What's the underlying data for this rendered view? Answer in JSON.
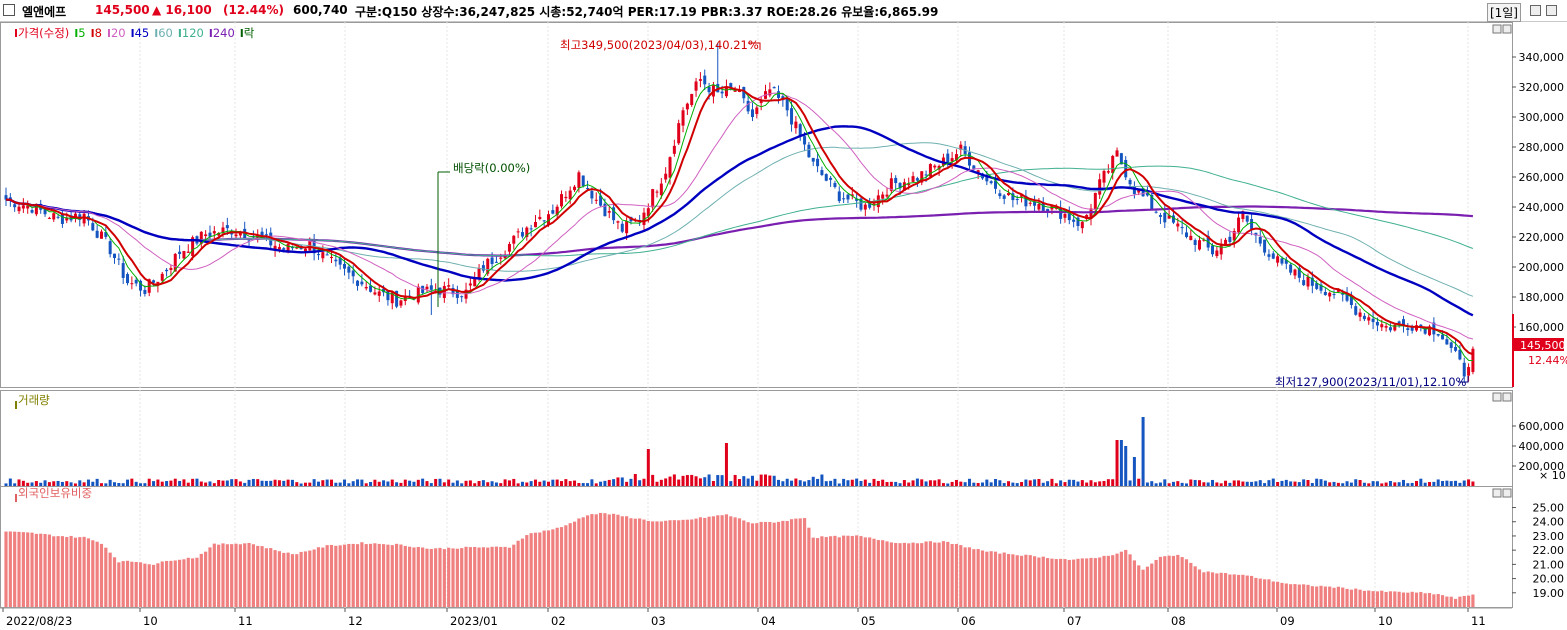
{
  "header": {
    "name": "엘앤에프",
    "price": "145,500",
    "change": "▲ 16,100",
    "change_pct": "(12.44%)",
    "volume": "600,740",
    "info": "구분:Q150 상장수:36,247,825 시총:52,740억 PER:17.19 PBR:3.37 ROE:28.26 유보율:6,865.99",
    "period": "[1일]"
  },
  "price_legend": [
    {
      "label": "가격(수정)",
      "color": "#e0001b"
    },
    {
      "label": "5",
      "color": "#00b000"
    },
    {
      "label": "8",
      "color": "#d00000"
    },
    {
      "label": "20",
      "color": "#d060c0"
    },
    {
      "label": "45",
      "color": "#0000c0"
    },
    {
      "label": "60",
      "color": "#6fb0b0"
    },
    {
      "label": "120",
      "color": "#40b090"
    },
    {
      "label": "240",
      "color": "#7a1fb0"
    },
    {
      "label": "락",
      "color": "#006000"
    }
  ],
  "volume_legend": "거래량",
  "foreign_legend": "외국인보유비중",
  "annotations": {
    "high": "최고349,500(2023/04/03),140.21%",
    "low": "최저127,900(2023/11/01),12.10%",
    "dividend": "배당락(0.00%)"
  },
  "last_price_tag": {
    "price": "145,500",
    "pct": "12.44%"
  },
  "volume_unit": "× 10",
  "colors": {
    "up": "#e0001b",
    "down": "#1555c0",
    "foreign": "#f08080"
  },
  "chart_data": {
    "type": "candlestick",
    "date_range": [
      "2022/08/23",
      "2023/11/01"
    ],
    "x_tick_labels": [
      "2022/08/23",
      "10",
      "11",
      "12",
      "2023/01",
      "02",
      "03",
      "04",
      "05",
      "06",
      "07",
      "08",
      "09",
      "10",
      "11"
    ],
    "x_tick_positions_month_index": [
      0,
      1.3,
      2.3,
      3.3,
      4.3,
      5.3,
      6.3,
      7.3,
      8.3,
      9.3,
      10.3,
      11.3,
      12.3,
      13.3,
      14.3
    ],
    "price_panel": {
      "y_ticks": [
        160000,
        180000,
        200000,
        220000,
        240000,
        260000,
        280000,
        300000,
        320000,
        340000
      ],
      "ylim": [
        120000,
        360000
      ],
      "close_waypoints": [
        [
          0,
          245000
        ],
        [
          6,
          240000
        ],
        [
          12,
          232000
        ],
        [
          18,
          235000
        ],
        [
          24,
          212000
        ],
        [
          28,
          190000
        ],
        [
          32,
          185000
        ],
        [
          36,
          195000
        ],
        [
          40,
          210000
        ],
        [
          46,
          222000
        ],
        [
          52,
          225000
        ],
        [
          58,
          220000
        ],
        [
          64,
          212000
        ],
        [
          70,
          215000
        ],
        [
          76,
          200000
        ],
        [
          82,
          190000
        ],
        [
          86,
          182000
        ],
        [
          90,
          178000
        ],
        [
          94,
          182000
        ],
        [
          100,
          185000
        ],
        [
          106,
          183000
        ],
        [
          110,
          200000
        ],
        [
          116,
          215000
        ],
        [
          122,
          232000
        ],
        [
          126,
          238000
        ],
        [
          132,
          262000
        ],
        [
          136,
          245000
        ],
        [
          142,
          225000
        ],
        [
          146,
          232000
        ],
        [
          152,
          265000
        ],
        [
          156,
          305000
        ],
        [
          160,
          325000
        ],
        [
          164,
          315000
        ],
        [
          168,
          318000
        ],
        [
          172,
          300000
        ],
        [
          176,
          318000
        ],
        [
          180,
          305000
        ],
        [
          186,
          268000
        ],
        [
          192,
          248000
        ],
        [
          198,
          240000
        ],
        [
          204,
          255000
        ],
        [
          210,
          260000
        ],
        [
          216,
          270000
        ],
        [
          220,
          278000
        ],
        [
          226,
          258000
        ],
        [
          232,
          245000
        ],
        [
          238,
          243000
        ],
        [
          244,
          235000
        ],
        [
          248,
          228000
        ],
        [
          252,
          255000
        ],
        [
          256,
          275000
        ],
        [
          260,
          252000
        ],
        [
          266,
          235000
        ],
        [
          272,
          222000
        ],
        [
          278,
          210000
        ],
        [
          282,
          220000
        ],
        [
          285,
          235000
        ],
        [
          288,
          220000
        ],
        [
          294,
          200000
        ],
        [
          300,
          190000
        ],
        [
          306,
          183000
        ],
        [
          312,
          170000
        ],
        [
          318,
          160000
        ],
        [
          324,
          162000
        ],
        [
          330,
          158000
        ],
        [
          334,
          140000
        ],
        [
          336,
          130000
        ],
        [
          338,
          145500
        ]
      ],
      "moving_averages": {
        "5": {
          "color": "#00b000"
        },
        "8": {
          "color": "#d00000"
        },
        "20": {
          "color": "#d060c0"
        },
        "45": {
          "color": "#0000c0"
        },
        "60": {
          "color": "#6fb0b0"
        },
        "120": {
          "color": "#40b090"
        },
        "240": {
          "color": "#7a1fb0"
        }
      },
      "high": 349500,
      "low": 127900,
      "last": 145500
    },
    "volume_panel": {
      "y_ticks": [
        200000,
        400000,
        600000
      ],
      "ylim": [
        0,
        800000
      ],
      "spikes": [
        [
          148,
          370000
        ],
        [
          166,
          430000
        ],
        [
          256,
          460000
        ],
        [
          257,
          460000
        ],
        [
          258,
          400000
        ],
        [
          260,
          290000
        ],
        [
          262,
          690000
        ]
      ],
      "base": 50000
    },
    "foreign_panel": {
      "y_ticks": [
        19.0,
        20.0,
        21.0,
        22.0,
        23.0,
        24.0,
        25.0
      ],
      "ylim": [
        18.0,
        25.6
      ],
      "waypoints": [
        [
          0,
          23.3
        ],
        [
          6,
          23.2
        ],
        [
          12,
          23.0
        ],
        [
          18,
          22.9
        ],
        [
          22,
          22.5
        ],
        [
          26,
          21.2
        ],
        [
          30,
          21.2
        ],
        [
          34,
          21.0
        ],
        [
          38,
          21.3
        ],
        [
          44,
          21.5
        ],
        [
          48,
          22.4
        ],
        [
          56,
          22.5
        ],
        [
          66,
          21.7
        ],
        [
          74,
          22.3
        ],
        [
          82,
          22.5
        ],
        [
          90,
          22.4
        ],
        [
          98,
          22.1
        ],
        [
          108,
          22.2
        ],
        [
          116,
          22.2
        ],
        [
          120,
          23.1
        ],
        [
          128,
          23.6
        ],
        [
          134,
          24.5
        ],
        [
          138,
          24.6
        ],
        [
          144,
          24.3
        ],
        [
          150,
          24.0
        ],
        [
          156,
          24.1
        ],
        [
          166,
          24.5
        ],
        [
          172,
          23.9
        ],
        [
          178,
          24.0
        ],
        [
          184,
          24.3
        ],
        [
          186,
          22.9
        ],
        [
          196,
          23.0
        ],
        [
          206,
          22.5
        ],
        [
          216,
          22.6
        ],
        [
          226,
          21.9
        ],
        [
          236,
          21.6
        ],
        [
          246,
          21.3
        ],
        [
          254,
          21.6
        ],
        [
          258,
          22.0
        ],
        [
          262,
          20.6
        ],
        [
          266,
          21.5
        ],
        [
          270,
          21.7
        ],
        [
          276,
          20.5
        ],
        [
          286,
          20.2
        ],
        [
          296,
          19.6
        ],
        [
          306,
          19.4
        ],
        [
          316,
          19.1
        ],
        [
          326,
          19.0
        ],
        [
          330,
          18.9
        ],
        [
          334,
          18.6
        ],
        [
          338,
          18.9
        ]
      ]
    }
  }
}
